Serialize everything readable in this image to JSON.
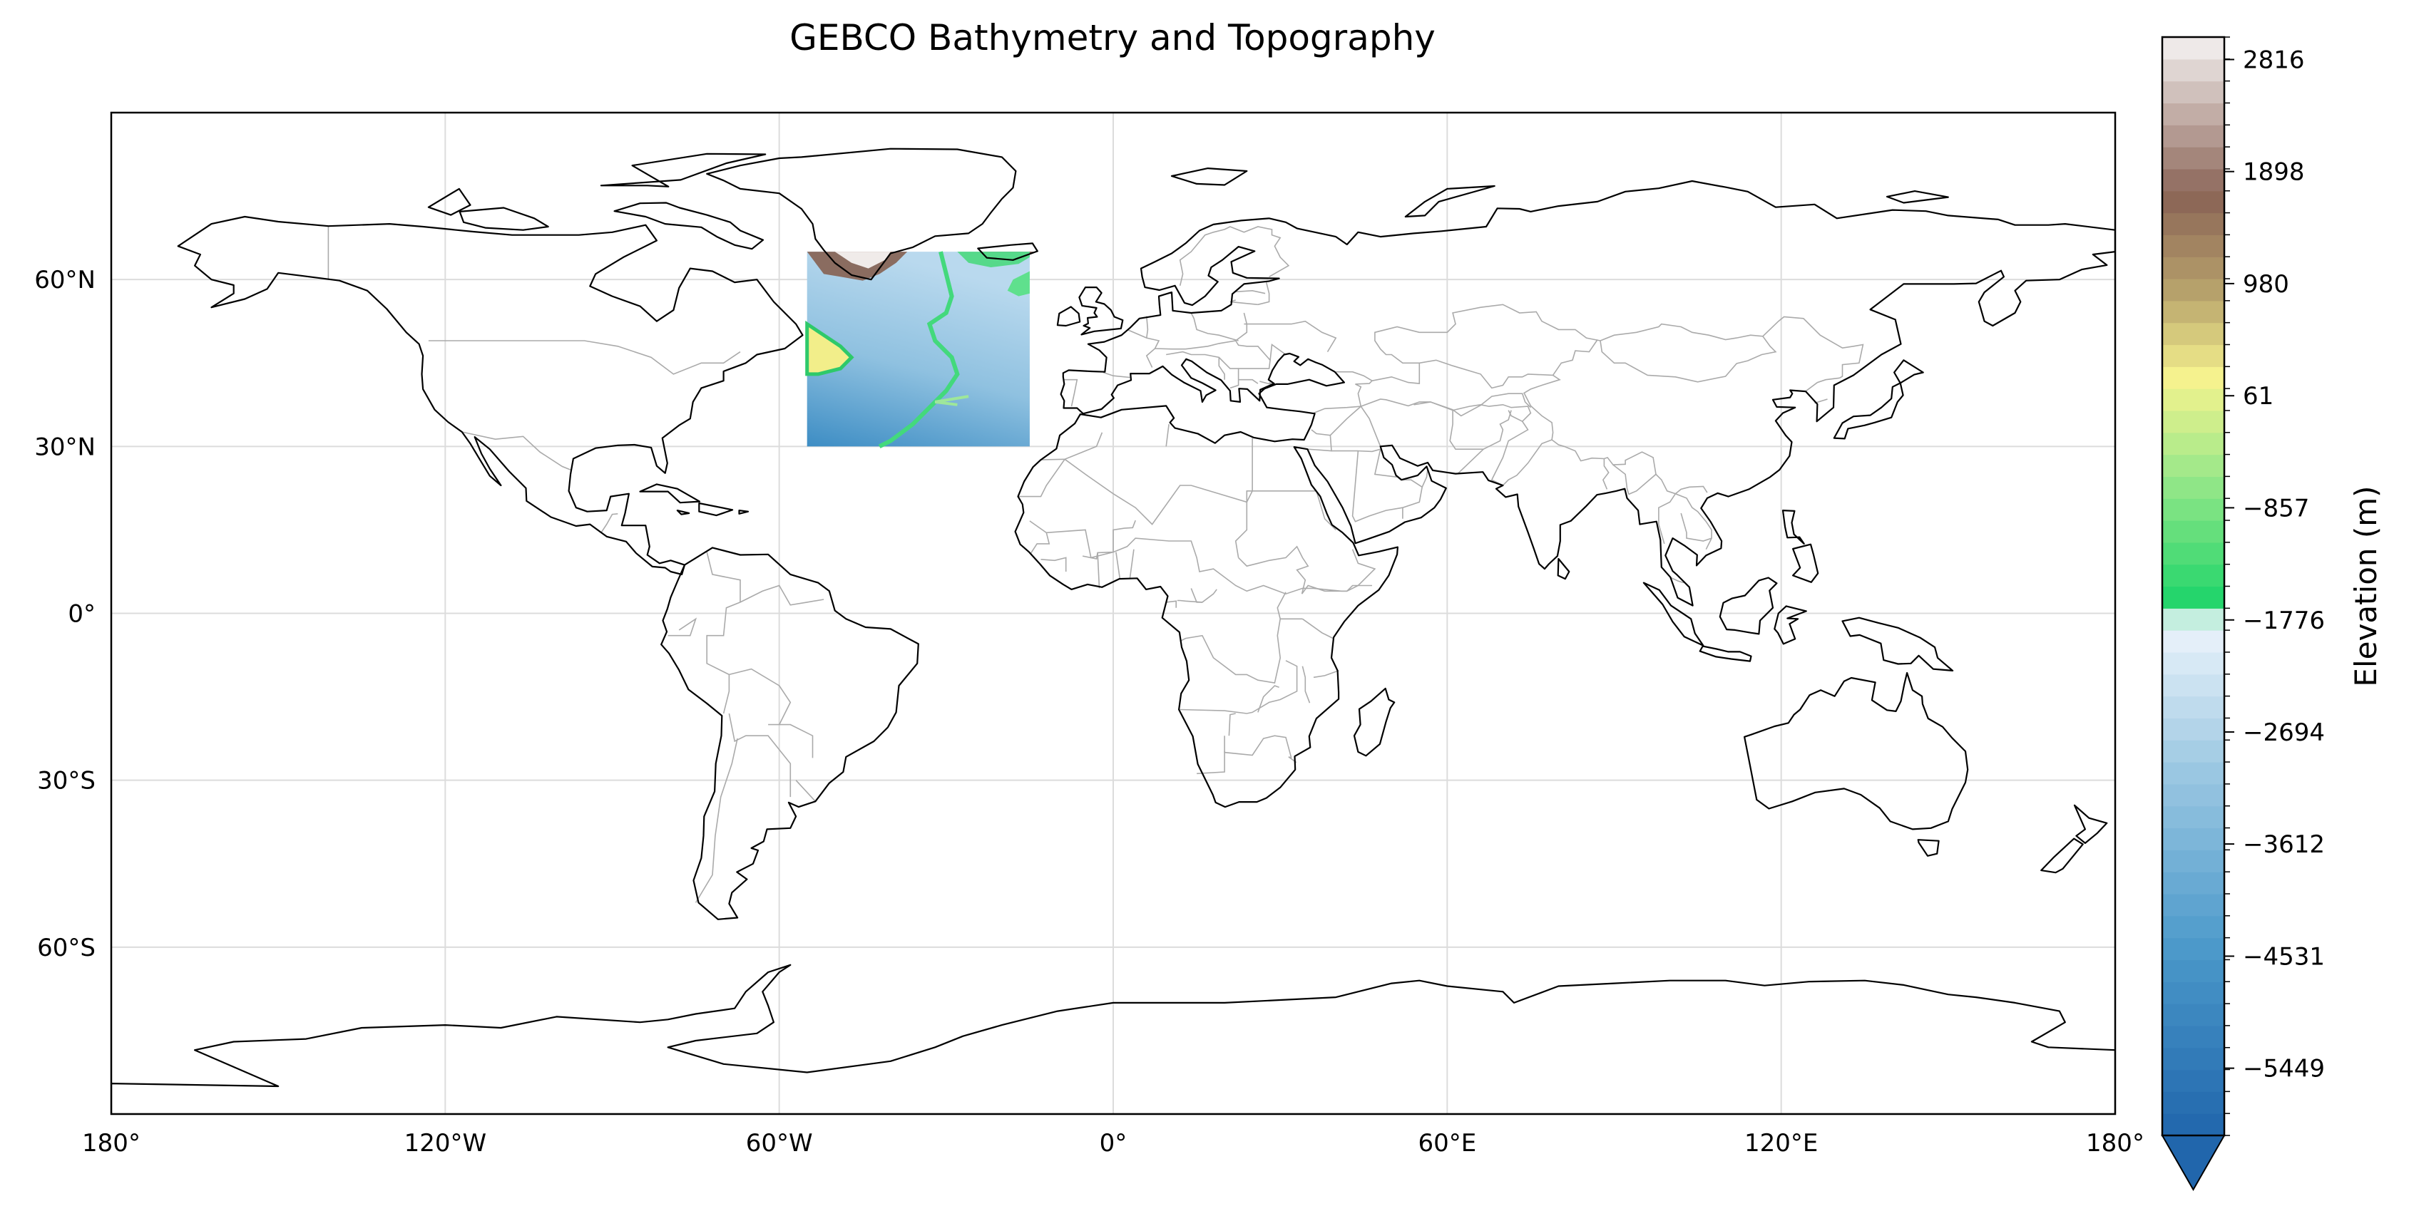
{
  "title": "GEBCO Bathymetry and Topography",
  "map": {
    "projection": "PlateCarree",
    "extent": [
      -180,
      180,
      -90,
      90
    ],
    "lon_ticks": [
      {
        "value": -180,
        "label": "180°"
      },
      {
        "value": -120,
        "label": "120°W"
      },
      {
        "value": -60,
        "label": "60°W"
      },
      {
        "value": 0,
        "label": "0°"
      },
      {
        "value": 60,
        "label": "60°E"
      },
      {
        "value": 120,
        "label": "120°E"
      },
      {
        "value": 180,
        "label": "180°"
      }
    ],
    "lat_ticks": [
      {
        "value": 60,
        "label": "60°N"
      },
      {
        "value": 30,
        "label": "30°N"
      },
      {
        "value": 0,
        "label": "0°"
      },
      {
        "value": -30,
        "label": "30°S"
      },
      {
        "value": -60,
        "label": "60°S"
      }
    ],
    "gridlines": true,
    "features": [
      "coastlines",
      "country borders"
    ],
    "data_region": {
      "lon_min": -55,
      "lon_max": -15,
      "lat_min": 30,
      "lat_max": 65
    }
  },
  "colorbar": {
    "label": "Elevation (m)",
    "min": -6000,
    "max": 3000,
    "extend": "min",
    "tick_values": [
      2816,
      1898,
      980,
      61,
      -857,
      -1776,
      -2694,
      -3612,
      -4531,
      -5449
    ],
    "tick_labels": [
      "2816",
      "1898",
      "980",
      "61",
      "−857",
      "−1776",
      "−2694",
      "−3612",
      "−4531",
      "−5449"
    ],
    "stops": [
      {
        "value": -6000,
        "color": "#2166ac"
      },
      {
        "value": -4500,
        "color": "#4a98c9"
      },
      {
        "value": -3000,
        "color": "#9cc8e2"
      },
      {
        "value": -1800,
        "color": "#eef5fc"
      },
      {
        "value": -1650,
        "color": "#1ed46a"
      },
      {
        "value": -600,
        "color": "#9ae88a"
      },
      {
        "value": 200,
        "color": "#f6f38e"
      },
      {
        "value": 900,
        "color": "#b8a36c"
      },
      {
        "value": 1700,
        "color": "#8a6456"
      },
      {
        "value": 2400,
        "color": "#c4b0aa"
      },
      {
        "value": 3000,
        "color": "#f5f3f3"
      }
    ]
  },
  "colors": {
    "coast": "#000000",
    "border": "#aaaaaa",
    "grid": "#dcdcdc"
  }
}
